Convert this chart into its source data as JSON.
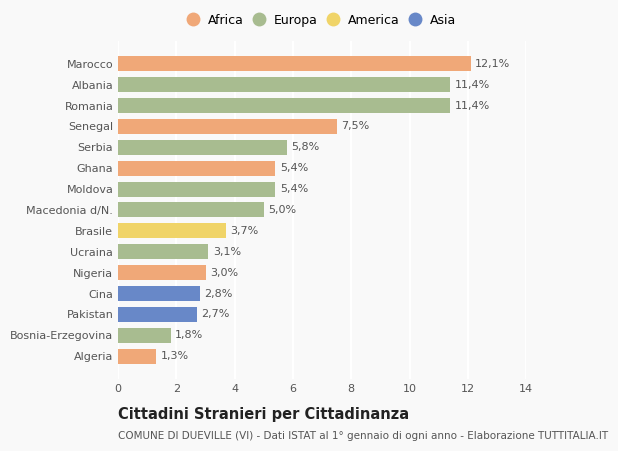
{
  "categories": [
    "Algeria",
    "Bosnia-Erzegovina",
    "Pakistan",
    "Cina",
    "Nigeria",
    "Ucraina",
    "Brasile",
    "Macedonia d/N.",
    "Moldova",
    "Ghana",
    "Serbia",
    "Senegal",
    "Romania",
    "Albania",
    "Marocco"
  ],
  "values": [
    1.3,
    1.8,
    2.7,
    2.8,
    3.0,
    3.1,
    3.7,
    5.0,
    5.4,
    5.4,
    5.8,
    7.5,
    11.4,
    11.4,
    12.1
  ],
  "labels": [
    "1,3%",
    "1,8%",
    "2,7%",
    "2,8%",
    "3,0%",
    "3,1%",
    "3,7%",
    "5,0%",
    "5,4%",
    "5,4%",
    "5,8%",
    "7,5%",
    "11,4%",
    "11,4%",
    "12,1%"
  ],
  "continents": [
    "Africa",
    "Europa",
    "Asia",
    "Asia",
    "Africa",
    "Europa",
    "America",
    "Europa",
    "Europa",
    "Africa",
    "Europa",
    "Africa",
    "Europa",
    "Europa",
    "Africa"
  ],
  "colors": {
    "Africa": "#F0A878",
    "Europa": "#A8BC90",
    "America": "#F0D468",
    "Asia": "#6888C8"
  },
  "legend_order": [
    "Africa",
    "Europa",
    "America",
    "Asia"
  ],
  "xlim": [
    0,
    14
  ],
  "xticks": [
    0,
    2,
    4,
    6,
    8,
    10,
    12,
    14
  ],
  "title": "Cittadini Stranieri per Cittadinanza",
  "subtitle": "COMUNE DI DUEVILLE (VI) - Dati ISTAT al 1° gennaio di ogni anno - Elaborazione TUTTITALIA.IT",
  "background_color": "#f9f9f9",
  "bar_height": 0.72,
  "title_fontsize": 10.5,
  "subtitle_fontsize": 7.5,
  "label_fontsize": 8,
  "tick_fontsize": 8,
  "legend_fontsize": 9
}
